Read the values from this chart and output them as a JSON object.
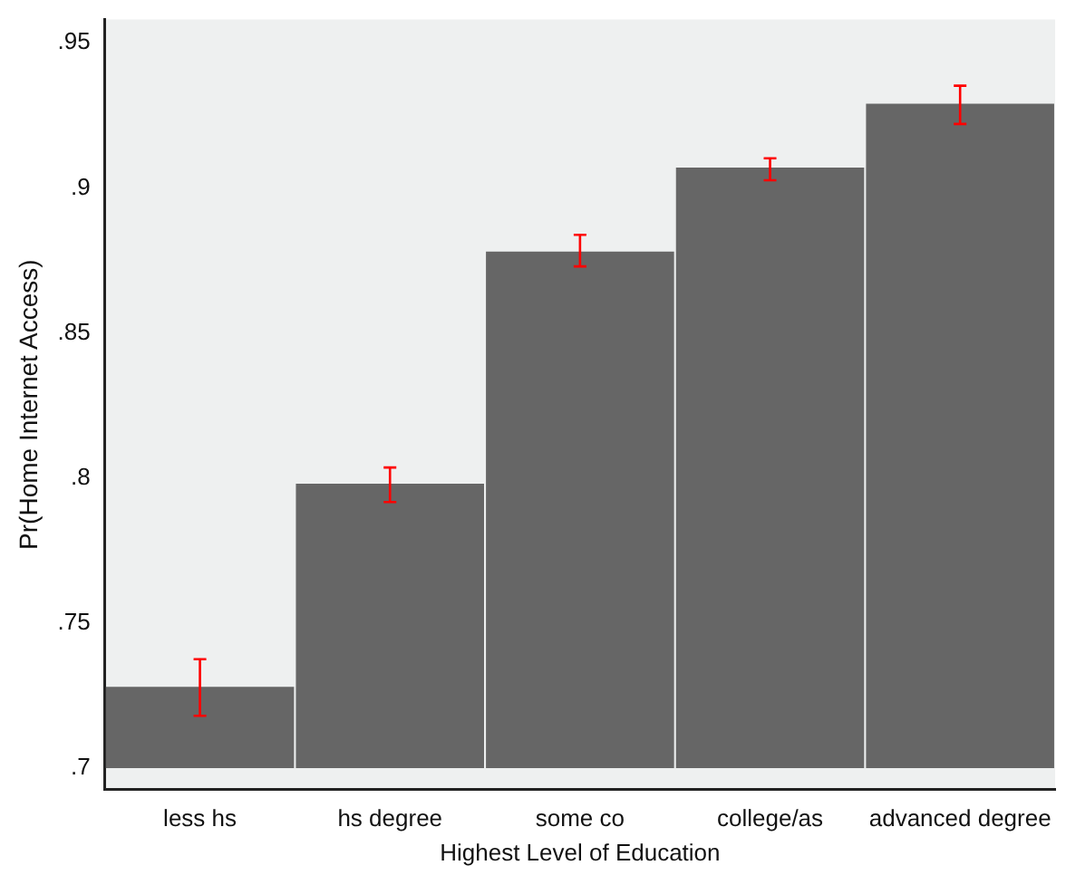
{
  "chart_data": {
    "type": "bar",
    "xlabel": "Highest Level of Education",
    "ylabel": "Pr(Home Internet Access)",
    "categories": [
      "less hs",
      "hs degree",
      "some co",
      "college/as",
      "advanced degree"
    ],
    "base": [
      0.7,
      0.7,
      0.7,
      0.7,
      0.7
    ],
    "values": [
      0.028,
      0.098,
      0.178,
      0.207,
      0.229
    ],
    "errors": [
      [
        0.718,
        0.7375
      ],
      [
        0.7917,
        0.8036
      ],
      [
        0.8729,
        0.8838
      ],
      [
        0.9026,
        0.9102
      ],
      [
        0.922,
        0.9352
      ]
    ],
    "color": "#666666",
    "ylim": [
      0.6926,
      0.958
    ],
    "yticks": [
      {
        "value": 0.7,
        "label": ".7"
      },
      {
        "value": 0.75,
        "label": ".75"
      },
      {
        "value": 0.8,
        "label": ".8"
      },
      {
        "value": 0.85,
        "label": ".85"
      },
      {
        "value": 0.9,
        "label": ".9"
      },
      {
        "value": 0.95,
        "label": ".95"
      }
    ],
    "grid": false,
    "legend": false
  }
}
